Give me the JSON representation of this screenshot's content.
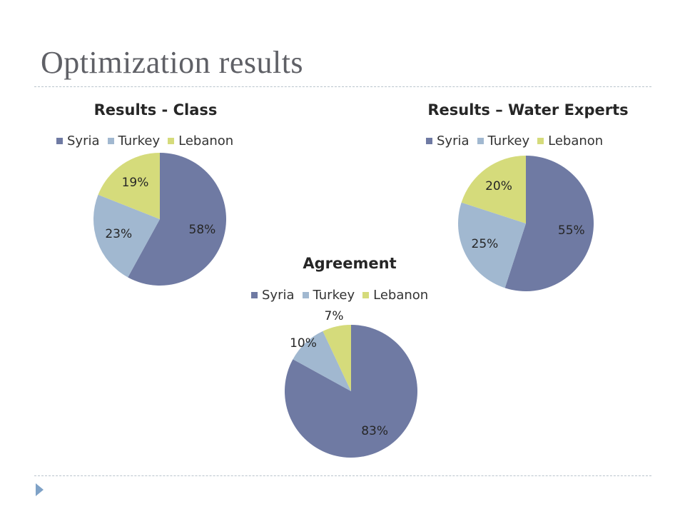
{
  "slide": {
    "title": "Optimization results"
  },
  "colors": {
    "Syria": "#6f7aa3",
    "Turkey": "#a1b8d0",
    "Lebanon": "#d5db7b",
    "title_text": "#5f6066",
    "divider": "#b9c4cc",
    "bullet": "#7fa2c7"
  },
  "chart_data": [
    {
      "type": "pie",
      "title": "Results - Class",
      "legend_position": "top",
      "categories": [
        "Syria",
        "Turkey",
        "Lebanon"
      ],
      "values": [
        58,
        23,
        19
      ],
      "labels": [
        "58%",
        "23%",
        "19%"
      ]
    },
    {
      "type": "pie",
      "title": "Results – Water Experts",
      "legend_position": "top",
      "categories": [
        "Syria",
        "Turkey",
        "Lebanon"
      ],
      "values": [
        55,
        25,
        20
      ],
      "labels": [
        "55%",
        "25%",
        "20%"
      ]
    },
    {
      "type": "pie",
      "title": "Agreement",
      "legend_position": "top",
      "categories": [
        "Syria",
        "Turkey",
        "Lebanon"
      ],
      "values": [
        83,
        10,
        7
      ],
      "labels": [
        "83%",
        "10%",
        "7%"
      ]
    }
  ]
}
